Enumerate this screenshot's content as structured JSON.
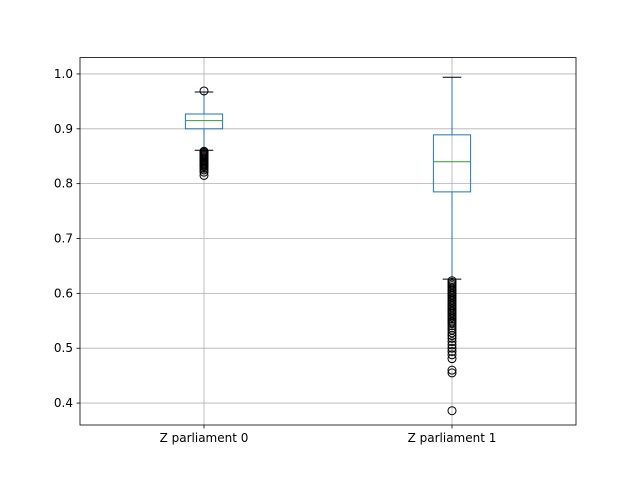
{
  "chart_data": {
    "type": "box",
    "title": "",
    "xlabel": "",
    "ylabel": "",
    "ylim": [
      0.36,
      1.03
    ],
    "yticks": [
      0.4,
      0.5,
      0.6,
      0.7,
      0.8,
      0.9,
      1.0
    ],
    "ytick_labels": [
      "0.4",
      "0.5",
      "0.6",
      "0.7",
      "0.8",
      "0.9",
      "1.0"
    ],
    "grid": true,
    "categories": [
      "Z parliament 0",
      "Z parliament 1"
    ],
    "boxes": [
      {
        "name": "Z parliament 0",
        "whisker_low": 0.861,
        "q1": 0.9,
        "median": 0.915,
        "q3": 0.927,
        "whisker_high": 0.967,
        "fliers_high": [
          0.969
        ],
        "fliers_low": [
          0.859,
          0.857,
          0.855,
          0.853,
          0.851,
          0.849,
          0.847,
          0.845,
          0.843,
          0.841,
          0.839,
          0.837,
          0.835,
          0.833,
          0.831,
          0.828,
          0.825,
          0.821,
          0.815
        ]
      },
      {
        "name": "Z parliament 1",
        "whisker_low": 0.626,
        "q1": 0.785,
        "median": 0.84,
        "q3": 0.889,
        "whisker_high": 0.994,
        "fliers_high": [],
        "fliers_low": [
          0.623,
          0.62,
          0.617,
          0.614,
          0.611,
          0.608,
          0.605,
          0.602,
          0.599,
          0.596,
          0.593,
          0.59,
          0.587,
          0.584,
          0.581,
          0.578,
          0.575,
          0.572,
          0.569,
          0.566,
          0.563,
          0.56,
          0.557,
          0.554,
          0.551,
          0.548,
          0.545,
          0.541,
          0.537,
          0.533,
          0.528,
          0.523,
          0.518,
          0.512,
          0.506,
          0.5,
          0.494,
          0.488,
          0.481,
          0.46,
          0.455,
          0.386
        ]
      }
    ],
    "colors": {
      "box": "#1f77b4",
      "median": "#2ca02c",
      "flier": "#000000",
      "grid": "#b0b0b0",
      "axes": "#000000"
    }
  }
}
